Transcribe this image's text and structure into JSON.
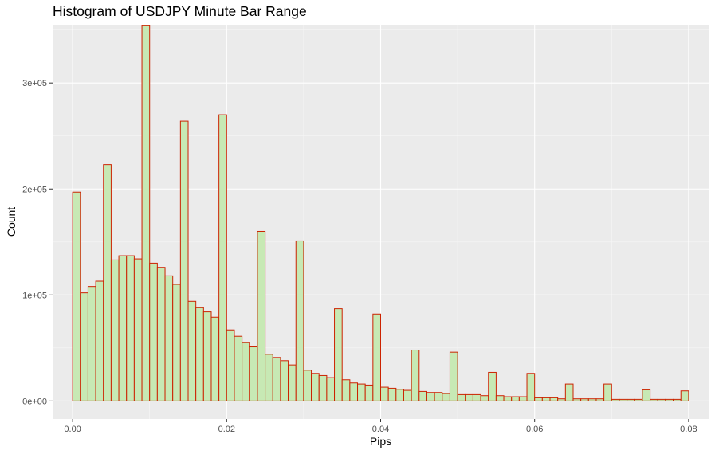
{
  "chart_data": {
    "type": "bar",
    "title": "Histogram of USDJPY Minute Bar Range",
    "xlabel": "Pips",
    "ylabel": "Count",
    "xlim": [
      -0.0026,
      0.0826
    ],
    "ylim": [
      -17000,
      355000
    ],
    "x_ticks": [
      {
        "value": 0.0,
        "label": "0.00"
      },
      {
        "value": 0.02,
        "label": "0.02"
      },
      {
        "value": 0.04,
        "label": "0.04"
      },
      {
        "value": 0.06,
        "label": "0.06"
      },
      {
        "value": 0.08,
        "label": "0.08"
      }
    ],
    "y_ticks": [
      {
        "value": 0,
        "label": "0e+00"
      },
      {
        "value": 100000,
        "label": "1e+05"
      },
      {
        "value": 200000,
        "label": "2e+05"
      },
      {
        "value": 300000,
        "label": "3e+05"
      }
    ],
    "bin_start": 0.0,
    "bin_width": 0.001,
    "values": [
      197000,
      102000,
      108000,
      113000,
      223000,
      133000,
      137000,
      137000,
      134000,
      354000,
      130000,
      126000,
      118000,
      110000,
      264000,
      94000,
      88000,
      84000,
      79000,
      270000,
      67000,
      61000,
      55000,
      51000,
      160000,
      44000,
      41000,
      38000,
      34000,
      151000,
      29000,
      26000,
      24000,
      22000,
      87000,
      20000,
      17000,
      16000,
      15000,
      82000,
      13000,
      12000,
      11000,
      10000,
      48000,
      9000,
      8000,
      8000,
      7000,
      46000,
      6000,
      6000,
      6000,
      5000,
      27000,
      5000,
      4000,
      4000,
      4000,
      26000,
      3000,
      3000,
      3000,
      2000,
      16000,
      2000,
      2000,
      2000,
      2000,
      16000,
      1500,
      1500,
      1500,
      1500,
      10500,
      1500,
      1500,
      1500,
      1500,
      9500
    ],
    "bar_fill": "#c7e9b4",
    "bar_outline": "#cc2200",
    "panel_background": "#ebebeb",
    "grid": true,
    "legend": "none"
  }
}
